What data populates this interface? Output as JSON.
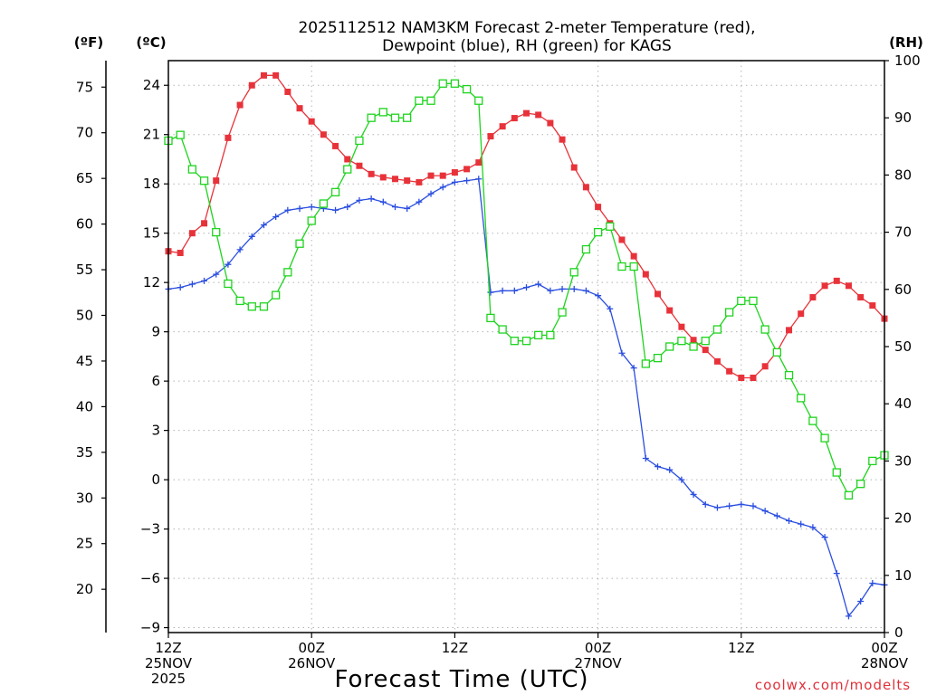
{
  "chart_data": {
    "type": "line",
    "title_lines": [
      "2025112512 NAM3KM Forecast 2-meter Temperature (red),",
      "Dewpoint (blue), RH (green) for KAGS"
    ],
    "xlabel": "Forecast Time (UTC)",
    "credit": "coolwx.com/modelts",
    "units": {
      "fahrenheit": "(ºF)",
      "celsius": "(ºC)",
      "rh": "(RH)"
    },
    "x_hour_range": [
      0,
      60
    ],
    "x_ticks": [
      {
        "hour": 0,
        "lines": [
          "12Z",
          "25NOV",
          "2025"
        ]
      },
      {
        "hour": 12,
        "lines": [
          "00Z",
          "26NOV"
        ]
      },
      {
        "hour": 24,
        "lines": [
          "12Z"
        ]
      },
      {
        "hour": 36,
        "lines": [
          "00Z",
          "27NOV"
        ]
      },
      {
        "hour": 48,
        "lines": [
          "12Z"
        ]
      },
      {
        "hour": 60,
        "lines": [
          "00Z",
          "28NOV"
        ]
      }
    ],
    "celsius_axis": {
      "range": [
        -9.3,
        25.5
      ],
      "ticks": [
        -9,
        -6,
        -3,
        0,
        3,
        6,
        9,
        12,
        15,
        18,
        21,
        24
      ]
    },
    "fahrenheit_axis": {
      "ticks": [
        20,
        25,
        30,
        35,
        40,
        45,
        50,
        55,
        60,
        65,
        70,
        75
      ]
    },
    "rh_axis": {
      "range": [
        0,
        100
      ],
      "ticks": [
        0,
        10,
        20,
        30,
        40,
        50,
        60,
        70,
        80,
        90,
        100
      ]
    },
    "grid": true,
    "series": [
      {
        "name": "Temperature",
        "unit": "C",
        "color": "#e8323a",
        "marker": "filled-square",
        "points": [
          [
            0,
            13.9
          ],
          [
            1,
            13.8
          ],
          [
            2,
            15
          ],
          [
            3,
            15.6
          ],
          [
            4,
            18.2
          ],
          [
            5,
            20.8
          ],
          [
            6,
            22.8
          ],
          [
            7,
            24
          ],
          [
            8,
            24.6
          ],
          [
            9,
            24.6
          ],
          [
            10,
            23.6
          ],
          [
            11,
            22.6
          ],
          [
            12,
            21.8
          ],
          [
            13,
            21
          ],
          [
            14,
            20.3
          ],
          [
            15,
            19.5
          ],
          [
            16,
            19.1
          ],
          [
            17,
            18.6
          ],
          [
            18,
            18.4
          ],
          [
            19,
            18.3
          ],
          [
            20,
            18.2
          ],
          [
            21,
            18.1
          ],
          [
            22,
            18.5
          ],
          [
            23,
            18.5
          ],
          [
            24,
            18.7
          ],
          [
            25,
            18.9
          ],
          [
            26,
            19.3
          ],
          [
            27,
            20.9
          ],
          [
            28,
            21.5
          ],
          [
            29,
            22
          ],
          [
            30,
            22.3
          ],
          [
            31,
            22.2
          ],
          [
            32,
            21.7
          ],
          [
            33,
            20.7
          ],
          [
            34,
            19
          ],
          [
            35,
            17.8
          ],
          [
            36,
            16.6
          ],
          [
            37,
            15.6
          ],
          [
            38,
            14.6
          ],
          [
            39,
            13.6
          ],
          [
            40,
            12.5
          ],
          [
            41,
            11.3
          ],
          [
            42,
            10.3
          ],
          [
            43,
            9.3
          ],
          [
            44,
            8.5
          ],
          [
            45,
            7.9
          ],
          [
            46,
            7.2
          ],
          [
            47,
            6.6
          ],
          [
            48,
            6.2
          ],
          [
            49,
            6.2
          ],
          [
            50,
            6.9
          ],
          [
            51,
            7.8
          ],
          [
            52,
            9.1
          ],
          [
            53,
            10.1
          ],
          [
            54,
            11.1
          ],
          [
            55,
            11.8
          ],
          [
            56,
            12.1
          ],
          [
            57,
            11.8
          ],
          [
            58,
            11.1
          ],
          [
            59,
            10.6
          ],
          [
            60,
            9.8
          ]
        ]
      },
      {
        "name": "Dewpoint",
        "unit": "C",
        "color": "#2a4ee0",
        "marker": "plus",
        "points": [
          [
            0,
            11.6
          ],
          [
            1,
            11.7
          ],
          [
            2,
            11.9
          ],
          [
            3,
            12.1
          ],
          [
            4,
            12.5
          ],
          [
            5,
            13.1
          ],
          [
            6,
            14
          ],
          [
            7,
            14.8
          ],
          [
            8,
            15.5
          ],
          [
            9,
            16
          ],
          [
            10,
            16.4
          ],
          [
            11,
            16.5
          ],
          [
            12,
            16.6
          ],
          [
            13,
            16.5
          ],
          [
            14,
            16.4
          ],
          [
            15,
            16.6
          ],
          [
            16,
            17
          ],
          [
            17,
            17.1
          ],
          [
            18,
            16.9
          ],
          [
            19,
            16.6
          ],
          [
            20,
            16.5
          ],
          [
            21,
            16.9
          ],
          [
            22,
            17.4
          ],
          [
            23,
            17.8
          ],
          [
            24,
            18.1
          ],
          [
            25,
            18.2
          ],
          [
            26,
            18.3
          ],
          [
            27,
            11.4
          ],
          [
            28,
            11.5
          ],
          [
            29,
            11.5
          ],
          [
            30,
            11.7
          ],
          [
            31,
            11.9
          ],
          [
            32,
            11.5
          ],
          [
            33,
            11.6
          ],
          [
            34,
            11.6
          ],
          [
            35,
            11.5
          ],
          [
            36,
            11.2
          ],
          [
            37,
            10.4
          ],
          [
            38,
            7.7
          ],
          [
            39,
            6.8
          ],
          [
            40,
            1.3
          ],
          [
            41,
            0.8
          ],
          [
            42,
            0.6
          ],
          [
            43,
            0
          ],
          [
            44,
            -0.9
          ],
          [
            45,
            -1.5
          ],
          [
            46,
            -1.7
          ],
          [
            47,
            -1.6
          ],
          [
            48,
            -1.5
          ],
          [
            49,
            -1.6
          ],
          [
            50,
            -1.9
          ],
          [
            51,
            -2.2
          ],
          [
            52,
            -2.5
          ],
          [
            53,
            -2.7
          ],
          [
            54,
            -2.9
          ],
          [
            55,
            -3.5
          ],
          [
            56,
            -5.7
          ],
          [
            57,
            -8.3
          ],
          [
            58,
            -7.4
          ],
          [
            59,
            -6.3
          ],
          [
            60,
            -6.4
          ]
        ]
      },
      {
        "name": "RH",
        "unit": "%",
        "color": "#1ed41e",
        "marker": "open-square",
        "points": [
          [
            0,
            86
          ],
          [
            1,
            87
          ],
          [
            2,
            81
          ],
          [
            3,
            79
          ],
          [
            4,
            70
          ],
          [
            5,
            61
          ],
          [
            6,
            58
          ],
          [
            7,
            57
          ],
          [
            8,
            57
          ],
          [
            9,
            59
          ],
          [
            10,
            63
          ],
          [
            11,
            68
          ],
          [
            12,
            72
          ],
          [
            13,
            75
          ],
          [
            14,
            77
          ],
          [
            15,
            81
          ],
          [
            16,
            86
          ],
          [
            17,
            90
          ],
          [
            18,
            91
          ],
          [
            19,
            90
          ],
          [
            20,
            90
          ],
          [
            21,
            93
          ],
          [
            22,
            93
          ],
          [
            23,
            96
          ],
          [
            24,
            96
          ],
          [
            25,
            95
          ],
          [
            26,
            93
          ],
          [
            27,
            55
          ],
          [
            28,
            53
          ],
          [
            29,
            51
          ],
          [
            30,
            51
          ],
          [
            31,
            52
          ],
          [
            32,
            52
          ],
          [
            33,
            56
          ],
          [
            34,
            63
          ],
          [
            35,
            67
          ],
          [
            36,
            70
          ],
          [
            37,
            71
          ],
          [
            38,
            64
          ],
          [
            39,
            64
          ],
          [
            40,
            47
          ],
          [
            41,
            48
          ],
          [
            42,
            50
          ],
          [
            43,
            51
          ],
          [
            44,
            50
          ],
          [
            45,
            51
          ],
          [
            46,
            53
          ],
          [
            47,
            56
          ],
          [
            48,
            58
          ],
          [
            49,
            58
          ],
          [
            50,
            53
          ],
          [
            51,
            49
          ],
          [
            52,
            45
          ],
          [
            53,
            41
          ],
          [
            54,
            37
          ],
          [
            55,
            34
          ],
          [
            56,
            28
          ],
          [
            57,
            24
          ],
          [
            58,
            26
          ],
          [
            59,
            30
          ],
          [
            60,
            31
          ]
        ]
      }
    ]
  }
}
